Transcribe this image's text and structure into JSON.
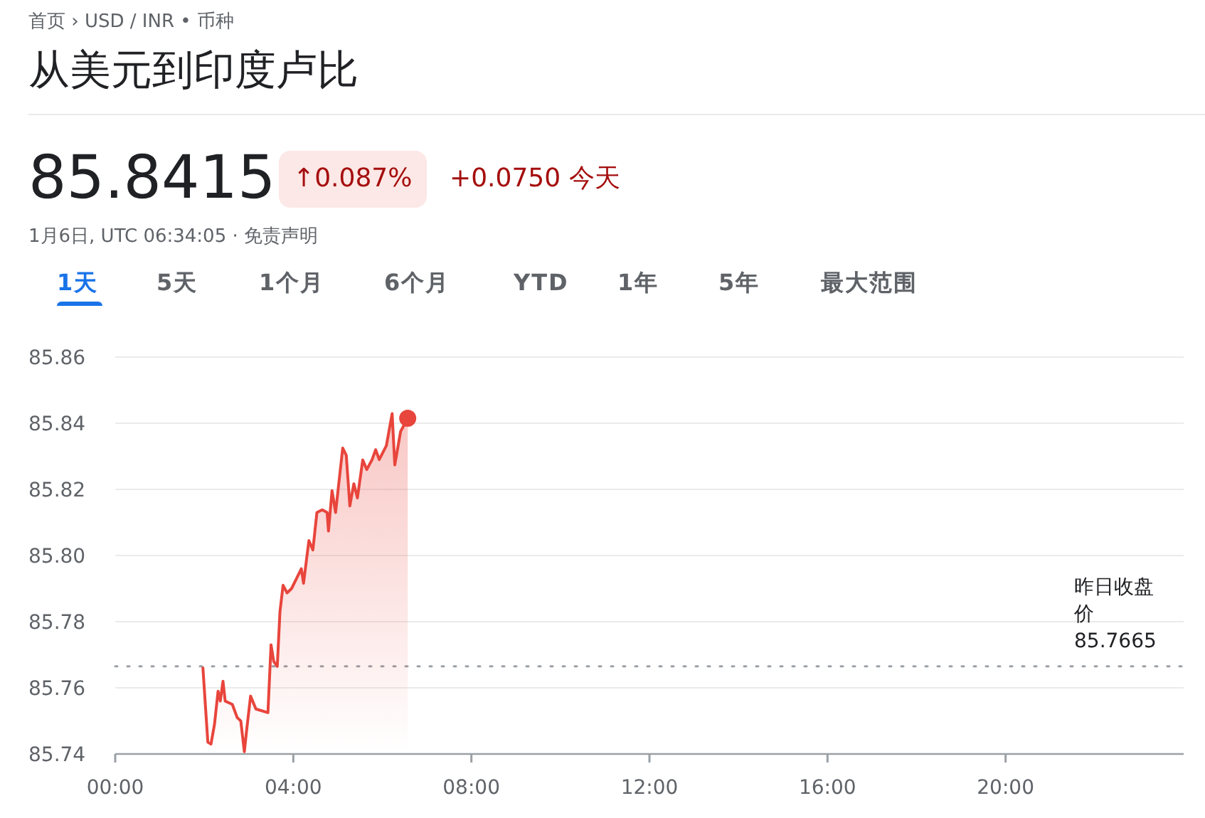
{
  "chart_data": {
    "type": "area",
    "title": "从美元到印度卢比",
    "subtitle": "1月6日, UTC 06:34:05 · 免责声明",
    "annotations": [
      "首页 › USD / INR • 币种",
      "85.8415",
      "↑0.087%",
      "+0.0750 今天",
      "1天",
      "5天",
      "1个月",
      "6个月",
      "YTD",
      "1年",
      "5年",
      "最大范围"
    ],
    "series": [
      {
        "color": "#e8453c",
        "x": [
          1.97,
          2.08,
          2.15,
          2.23,
          2.31,
          2.36,
          2.42,
          2.47,
          2.63,
          2.74,
          2.82,
          2.9,
          2.95,
          3.04,
          3.16,
          3.43,
          3.5,
          3.56,
          3.64,
          3.7,
          3.77,
          3.86,
          3.96,
          4.07,
          4.18,
          4.23,
          4.35,
          4.44,
          4.53,
          4.65,
          4.76,
          4.79,
          4.87,
          4.95,
          5.11,
          5.19,
          5.27,
          5.36,
          5.44,
          5.56,
          5.65,
          5.77,
          5.85,
          5.93,
          6.09,
          6.22,
          6.28,
          6.41,
          6.57
        ],
        "values": [
          85.766,
          85.7436,
          85.743,
          85.749,
          85.759,
          85.756,
          85.762,
          85.756,
          85.755,
          85.751,
          85.75,
          85.7407,
          85.747,
          85.7575,
          85.7536,
          85.7525,
          85.773,
          85.768,
          85.7665,
          85.783,
          85.791,
          85.7887,
          85.79,
          85.793,
          85.796,
          85.7916,
          85.8045,
          85.8017,
          85.813,
          85.8138,
          85.813,
          85.8074,
          85.8196,
          85.813,
          85.8325,
          85.8303,
          85.815,
          85.8217,
          85.8174,
          85.8289,
          85.826,
          85.829,
          85.832,
          85.829,
          85.8332,
          85.8429,
          85.8274,
          85.8375,
          85.8415
        ]
      }
    ],
    "xlim": [
      0,
      24
    ],
    "xticks": [
      {
        "value": 0,
        "label": "00:00"
      },
      {
        "value": 4,
        "label": "04:00"
      },
      {
        "value": 8,
        "label": "08:00"
      },
      {
        "value": 12,
        "label": "12:00"
      },
      {
        "value": 16,
        "label": "16:00"
      },
      {
        "value": 20,
        "label": "20:00"
      }
    ],
    "ylim": [
      85.74,
      85.86
    ],
    "yticks": [
      {
        "value": 85.74,
        "label": "85.74"
      },
      {
        "value": 85.76,
        "label": "85.76"
      },
      {
        "value": 85.78,
        "label": "85.78"
      },
      {
        "value": 85.8,
        "label": "85.80"
      },
      {
        "value": 85.82,
        "label": "85.82"
      },
      {
        "value": 85.84,
        "label": "85.84"
      },
      {
        "value": 85.86,
        "label": "85.86"
      }
    ],
    "grid": "y",
    "ref_lines": [
      {
        "axis": "y",
        "value": 85.7665,
        "label": "昨日收盘价 85.7665",
        "line_style": "dotted",
        "color": "#9aa0a6"
      }
    ]
  }
}
